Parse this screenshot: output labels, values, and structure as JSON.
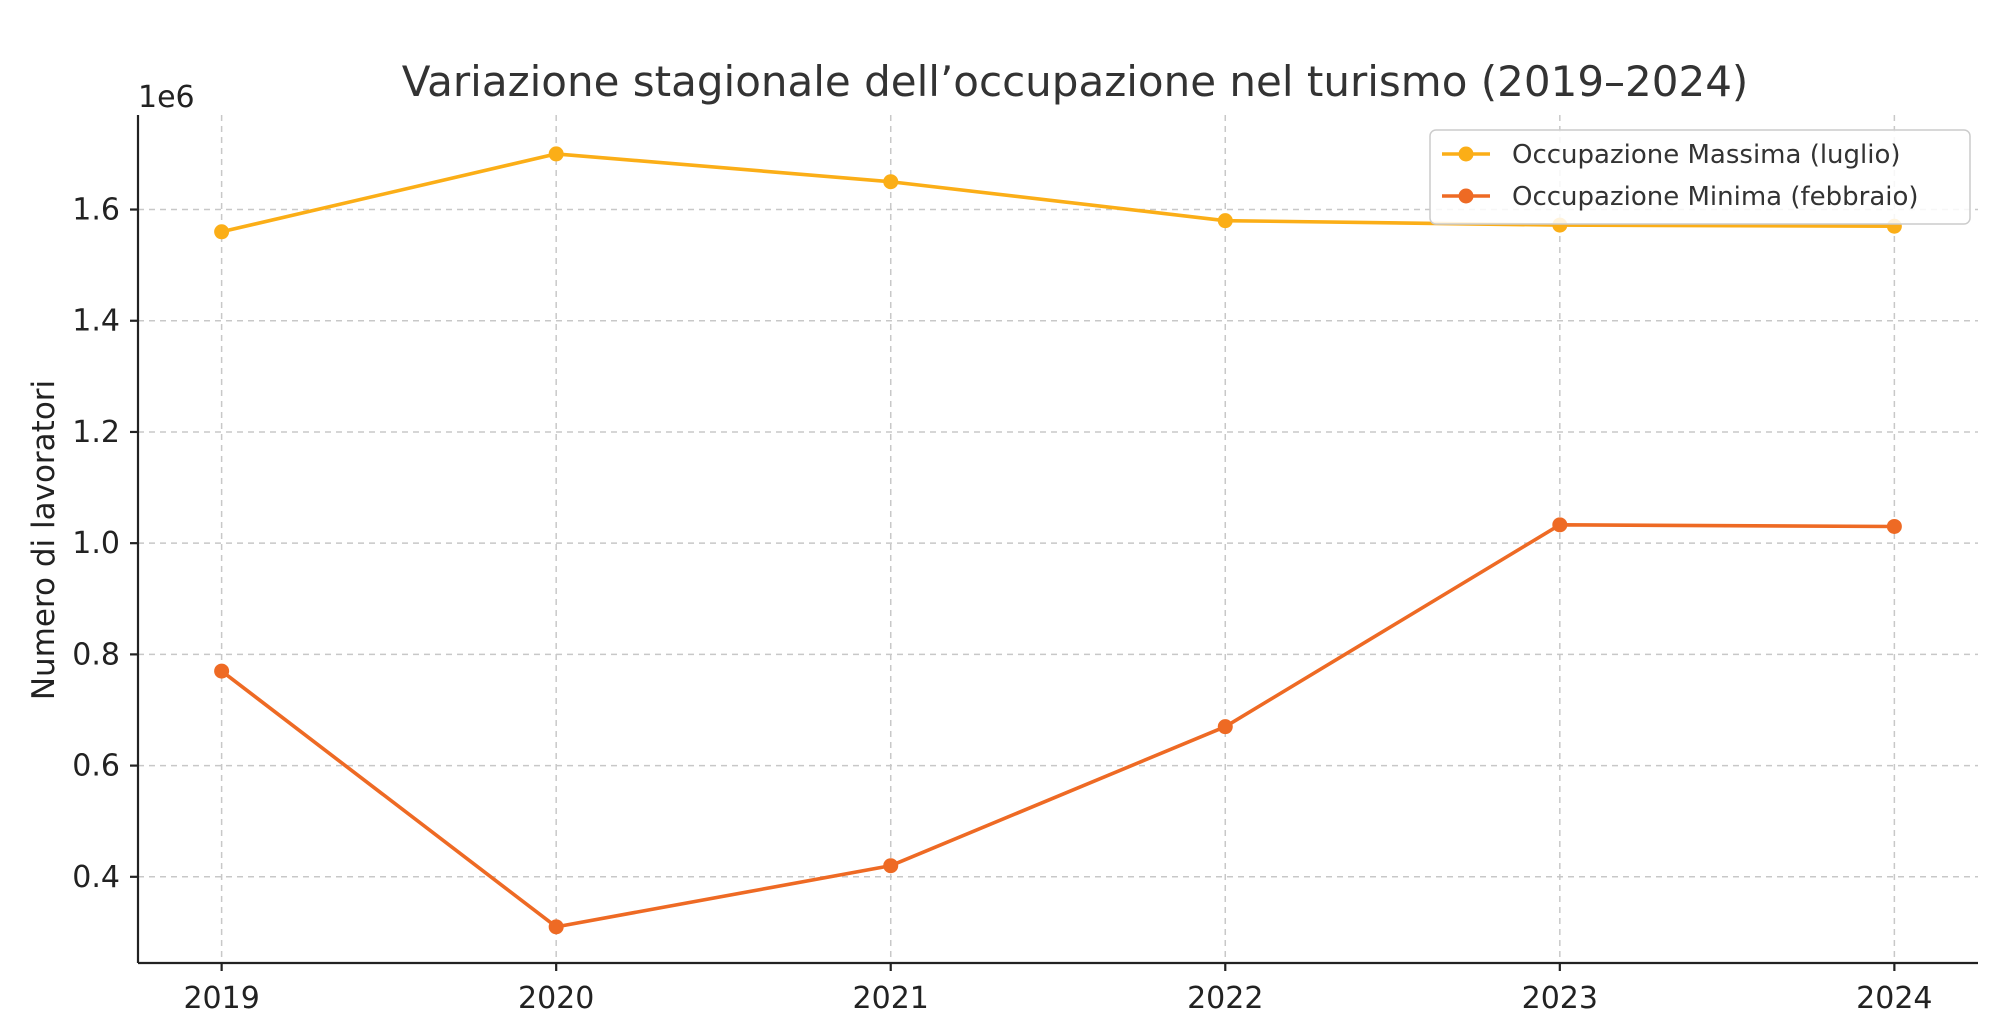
{
  "chart_data": {
    "type": "line",
    "title": "Variazione stagionale dell’occupazione nel turismo (2019–2024)",
    "xlabel": "",
    "ylabel": "Numero di lavoratori",
    "y_offset_label": "1e6",
    "x": [
      2019,
      2020,
      2021,
      2022,
      2023,
      2024
    ],
    "x_tick_labels": [
      "2019",
      "2020",
      "2021",
      "2022",
      "2023",
      "2024"
    ],
    "y_ticks": [
      0.4,
      0.6,
      0.8,
      1.0,
      1.2,
      1.4,
      1.6
    ],
    "y_tick_labels": [
      "0.4",
      "0.6",
      "0.8",
      "1.0",
      "1.2",
      "1.4",
      "1.6"
    ],
    "ylim": [
      0.245,
      1.77
    ],
    "grid": true,
    "legend_position": "top-right",
    "series": [
      {
        "name": "Occupazione Massima (luglio)",
        "color": "#FBAE17",
        "values": [
          1.56,
          1.7,
          1.65,
          1.58,
          1.572,
          1.57
        ]
      },
      {
        "name": "Occupazione Minima (febbraio)",
        "color": "#EE6A24",
        "values": [
          0.77,
          0.31,
          0.42,
          0.67,
          1.033,
          1.03
        ]
      }
    ]
  }
}
